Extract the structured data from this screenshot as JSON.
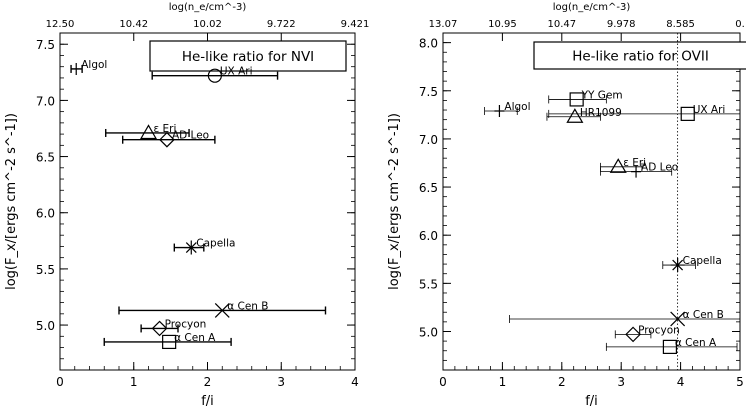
{
  "chart_data": [
    {
      "type": "scatter",
      "legend": "He-like ratio for NVI",
      "legend_placement": "top-right",
      "xlabel": "f/i",
      "ylabel": "log(F_x/[ergs cm^-2 s^-1])",
      "top_xlabel": "log(n_e/cm^-3)",
      "xlim": [
        0,
        4
      ],
      "ylim": [
        4.6,
        7.6
      ],
      "x_ticks": [
        "0",
        "1",
        "2",
        "3",
        "4"
      ],
      "y_ticks": [
        "5.0",
        "5.5",
        "6.0",
        "6.5",
        "7.0",
        "7.5"
      ],
      "top_ticks": [
        "12.50",
        "10.42",
        "10.02",
        "9.722",
        "9.421"
      ],
      "points": [
        {
          "label": "Algol",
          "x": 0.22,
          "y": 7.28,
          "xerr": [
            0.15,
            0.3
          ],
          "marker": "plus"
        },
        {
          "label": "UX Ari",
          "x": 2.1,
          "y": 7.22,
          "xerr": [
            1.25,
            2.95
          ],
          "marker": "circle"
        },
        {
          "label": "ε Eri",
          "x": 1.2,
          "y": 6.71,
          "xerr": [
            0.62,
            1.75
          ],
          "marker": "triangle"
        },
        {
          "label": "AD Leo",
          "x": 1.45,
          "y": 6.65,
          "xerr": [
            0.85,
            2.1
          ],
          "marker": "diamond"
        },
        {
          "label": "Capella",
          "x": 1.78,
          "y": 5.69,
          "xerr": [
            1.55,
            1.95
          ],
          "marker": "asterisk"
        },
        {
          "label": "α Cen B",
          "x": 2.2,
          "y": 5.13,
          "xerr": [
            0.8,
            3.6
          ],
          "marker": "x"
        },
        {
          "label": "Procyon",
          "x": 1.35,
          "y": 4.97,
          "xerr": [
            1.1,
            1.6
          ],
          "marker": "diamond"
        },
        {
          "label": "α Cen A",
          "x": 1.48,
          "y": 4.85,
          "xerr": [
            0.6,
            2.32
          ],
          "marker": "square"
        }
      ]
    },
    {
      "type": "scatter",
      "legend": "He-like ratio for OVII",
      "legend_placement": "top-left",
      "xlabel": "f/i",
      "ylabel": "log(F_x/[ergs cm^-2 s^-1])",
      "top_xlabel": "log(n_e/cm^-3)",
      "xlim": [
        0,
        5
      ],
      "ylim": [
        4.6,
        8.1
      ],
      "x_ticks": [
        "0",
        "1",
        "2",
        "3",
        "4",
        "5"
      ],
      "y_ticks": [
        "5.0",
        "5.5",
        "6.0",
        "6.5",
        "7.0",
        "7.5",
        "8.0"
      ],
      "top_ticks": [
        "13.07",
        "10.95",
        "10.47",
        "9.978",
        "8.585",
        "0."
      ],
      "vline_x": 3.95,
      "points": [
        {
          "label": "Algol",
          "x": 0.95,
          "y": 7.29,
          "xerr": [
            0.7,
            1.25
          ],
          "marker": "plus"
        },
        {
          "label": "YY Gem",
          "x": 2.25,
          "y": 7.41,
          "xerr": [
            1.78,
            2.75
          ],
          "marker": "square"
        },
        {
          "label": "HR1099",
          "x": 2.22,
          "y": 7.23,
          "xerr": [
            1.75,
            2.65
          ],
          "marker": "triangle"
        },
        {
          "label": "UX Ari",
          "x": 4.12,
          "y": 7.26,
          "xerr": [
            1.78,
            5.0
          ],
          "marker": "square"
        },
        {
          "label": "ε Eri",
          "x": 2.95,
          "y": 6.71,
          "xerr": [
            2.65,
            3.35
          ],
          "marker": "triangle"
        },
        {
          "label": "AD Leo",
          "x": 3.25,
          "y": 6.66,
          "xerr": [
            2.65,
            3.85
          ],
          "marker": "plus"
        },
        {
          "label": "Capella",
          "x": 3.95,
          "y": 5.69,
          "xerr": [
            3.7,
            4.25
          ],
          "marker": "asterisk"
        },
        {
          "label": "α Cen B",
          "x": 3.95,
          "y": 5.13,
          "xerr": [
            1.12,
            5.0
          ],
          "marker": "x"
        },
        {
          "label": "Procyon",
          "x": 3.2,
          "y": 4.97,
          "xerr": [
            2.9,
            3.5
          ],
          "marker": "diamond"
        },
        {
          "label": "α Cen A",
          "x": 3.82,
          "y": 4.84,
          "xerr": [
            2.75,
            4.95
          ],
          "marker": "square"
        }
      ]
    }
  ]
}
